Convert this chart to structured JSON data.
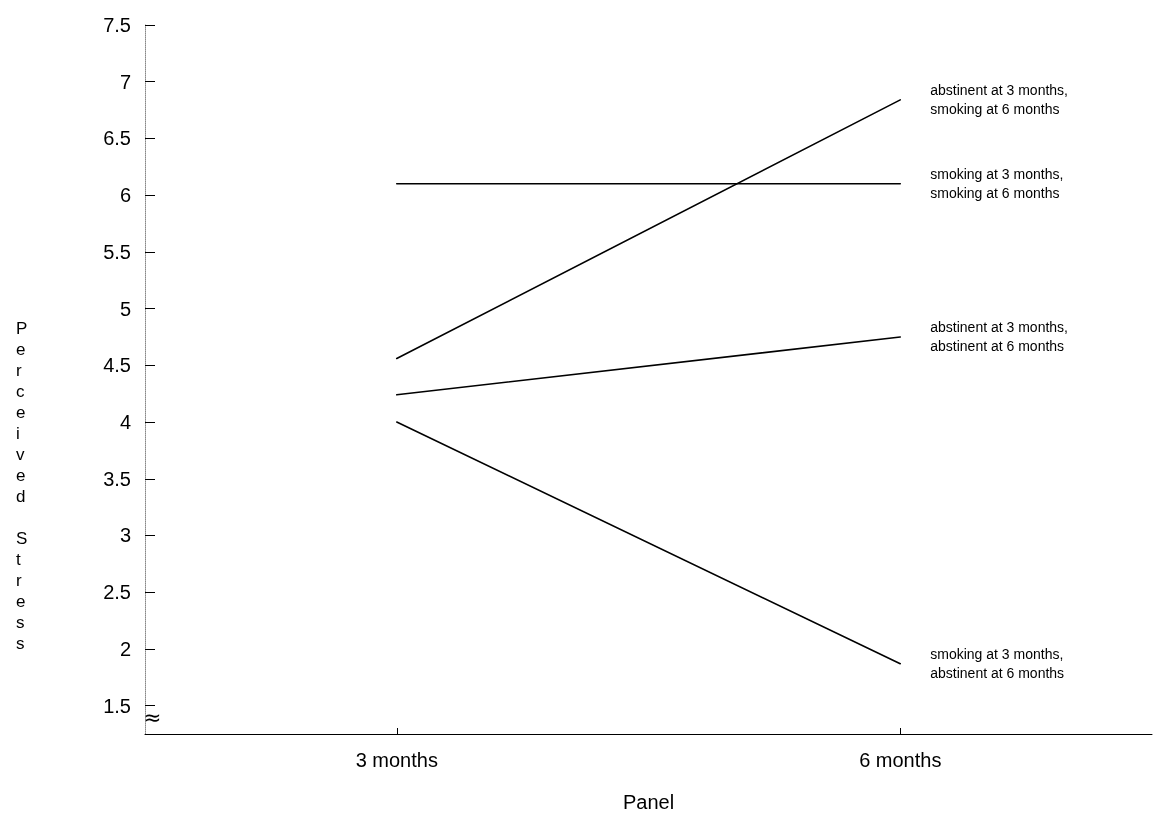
{
  "chart_data": {
    "type": "line",
    "xlabel": "Panel",
    "ylabel": "Perceived Stress",
    "categories": [
      "3 months",
      "6 months"
    ],
    "series": [
      {
        "name": "abstinent at 3 months, smoking at 6 months",
        "color": "#000000",
        "values": [
          4.56,
          6.84
        ]
      },
      {
        "name": "smoking at 3 months, smoking at 6 months",
        "color": "#000000",
        "values": [
          6.1,
          6.1
        ]
      },
      {
        "name": "abstinent at 3 months, abstinent at 6 months",
        "color": "#000000",
        "values": [
          4.24,
          4.75
        ]
      },
      {
        "name": "smoking at 3 months, abstinent at 6 months",
        "color": "#000000",
        "values": [
          4.0,
          1.87
        ]
      }
    ],
    "ylim": [
      1.25,
      7.5
    ],
    "yticks": [
      1.5,
      2,
      2.5,
      3,
      3.5,
      4,
      4.5,
      5,
      5.5,
      6,
      6.5,
      7,
      7.5
    ],
    "annotations": [
      "≈"
    ],
    "grid": false,
    "legend": false,
    "marker": "none",
    "line_style": "solid"
  }
}
